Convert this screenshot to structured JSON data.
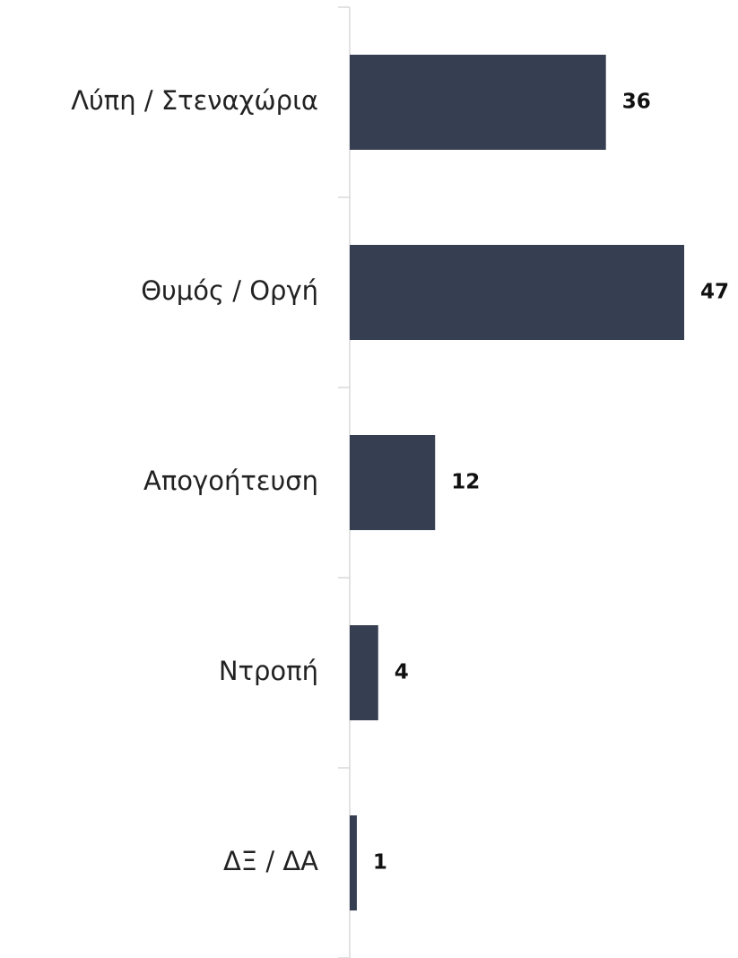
{
  "chart_data": {
    "type": "bar",
    "orientation": "horizontal",
    "categories": [
      "Λύπη / Στεναχώρια",
      "Θυμός / Οργή",
      "Απογοήτευση",
      "Ντροπή",
      "ΔΞ / ΔΑ"
    ],
    "values": [
      36,
      47,
      12,
      4,
      1
    ],
    "color": "#353f51"
  }
}
